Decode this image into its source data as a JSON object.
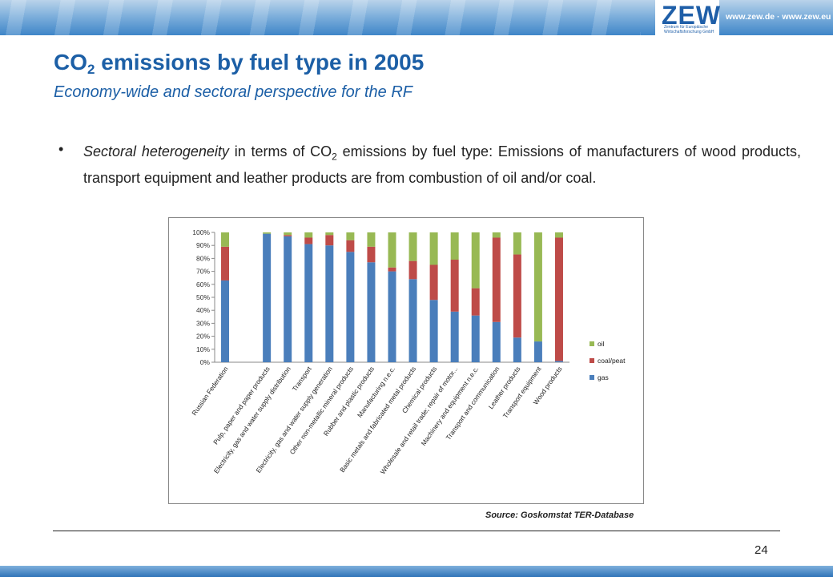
{
  "header": {
    "logo_text": "ZEW",
    "logo_subtext": "Zentrum für Europäische Wirtschaftsforschung GmbH",
    "url": "www.zew.de · www.zew.eu"
  },
  "slide": {
    "title_pre": "CO",
    "title_sub": "2",
    "title_post": " emissions by fuel type in 2005",
    "subtitle": "Economy-wide and sectoral perspective for the RF",
    "bullet": {
      "marker": "•",
      "italic": "Sectoral heterogeneity",
      "text_a": " in terms of CO",
      "sub": "2",
      "text_b": " emissions by fuel type: Emissions of manufacturers of wood products, transport equipment and leather products are from combustion of oil and/or coal."
    },
    "source": "Source: Goskomstat TER-Database",
    "page_number": "24"
  },
  "colors": {
    "gas": "#4a7ebb",
    "coal_peat": "#be4b48",
    "oil": "#98b954",
    "brand_blue": "#1c5fa6"
  },
  "chart_data": {
    "type": "bar",
    "stacked": true,
    "categories": [
      "Russian Federation",
      "",
      "Pulp, paper and paper products",
      "Electricity, gas and water supply distribution",
      "Transport",
      "Electricity, gas and water supply generation",
      "Other non-metallic mineral products",
      "Rubber and plastic products",
      "Manufacturing n.e.c.",
      "Basic metals and fabricated metal products",
      "Chemical products",
      "Wholesale and retail trade; repair of motor...",
      "Machinery and equipment n.e.c.",
      "Transport and communication",
      "Leather products",
      "Transport equipment",
      "Wood products"
    ],
    "series": [
      {
        "name": "gas",
        "values": [
          63,
          0,
          99,
          97,
          91,
          90,
          85,
          77,
          70,
          64,
          48,
          39,
          36,
          31,
          19,
          16,
          1
        ]
      },
      {
        "name": "coal/peat",
        "values": [
          26,
          0,
          0,
          1,
          5,
          8,
          9,
          12,
          3,
          14,
          27,
          40,
          21,
          65,
          64,
          0,
          95
        ]
      },
      {
        "name": "oil",
        "values": [
          11,
          0,
          1,
          2,
          4,
          2,
          6,
          11,
          27,
          22,
          25,
          21,
          43,
          4,
          17,
          84,
          4
        ]
      }
    ],
    "yticks": [
      "0%",
      "10%",
      "20%",
      "30%",
      "40%",
      "50%",
      "60%",
      "70%",
      "80%",
      "90%",
      "100%"
    ],
    "ylim": [
      0,
      100
    ],
    "legend_order": [
      "oil",
      "coal/peat",
      "gas"
    ],
    "legend": "right",
    "grid": false
  }
}
